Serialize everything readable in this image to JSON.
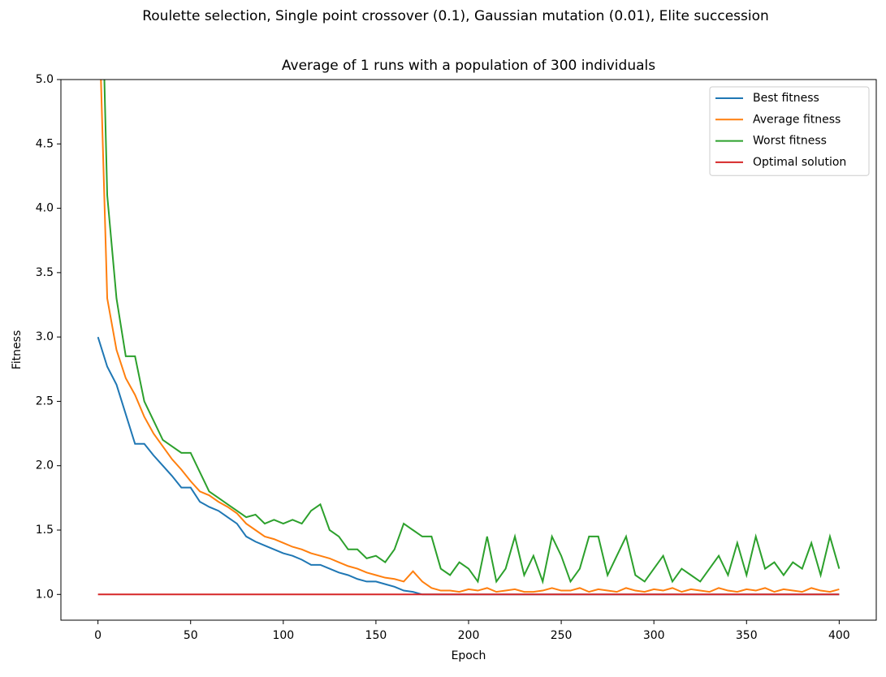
{
  "chart_data": {
    "type": "line",
    "suptitle": "Roulette selection, Single point crossover (0.1), Gaussian mutation (0.01), Elite succession",
    "title": "Average of 1 runs with a population of 300 individuals",
    "x_label": "Epoch",
    "y_label": "Fitness",
    "x": [
      0,
      5,
      10,
      15,
      20,
      25,
      30,
      35,
      40,
      45,
      50,
      55,
      60,
      65,
      70,
      75,
      80,
      85,
      90,
      95,
      100,
      105,
      110,
      115,
      120,
      125,
      130,
      135,
      140,
      145,
      150,
      155,
      160,
      165,
      170,
      175,
      180,
      185,
      190,
      195,
      200,
      205,
      210,
      215,
      220,
      225,
      230,
      235,
      240,
      245,
      250,
      255,
      260,
      265,
      270,
      275,
      280,
      285,
      290,
      295,
      300,
      305,
      310,
      315,
      320,
      325,
      330,
      335,
      340,
      345,
      350,
      355,
      360,
      365,
      370,
      375,
      380,
      385,
      390,
      395,
      400
    ],
    "series": [
      {
        "name": "Best fitness",
        "color": "#1f77b4",
        "values": [
          3.0,
          2.77,
          2.63,
          2.4,
          2.17,
          2.17,
          2.08,
          2.0,
          1.92,
          1.83,
          1.83,
          1.72,
          1.68,
          1.65,
          1.6,
          1.55,
          1.45,
          1.41,
          1.38,
          1.35,
          1.32,
          1.3,
          1.27,
          1.23,
          1.23,
          1.2,
          1.17,
          1.15,
          1.12,
          1.1,
          1.1,
          1.08,
          1.06,
          1.03,
          1.02,
          1.0,
          1.0,
          1.0,
          1.0,
          1.0,
          1.0,
          1.0,
          1.0,
          1.0,
          1.0,
          1.0,
          1.0,
          1.0,
          1.0,
          1.0,
          1.0,
          1.0,
          1.0,
          1.0,
          1.0,
          1.0,
          1.0,
          1.0,
          1.0,
          1.0,
          1.0,
          1.0,
          1.0,
          1.0,
          1.0,
          1.0,
          1.0,
          1.0,
          1.0,
          1.0,
          1.0,
          1.0,
          1.0,
          1.0,
          1.0,
          1.0,
          1.0,
          1.0,
          1.0,
          1.0,
          1.0
        ]
      },
      {
        "name": "Average fitness",
        "color": "#ff7f0e",
        "values": [
          5.8,
          3.3,
          2.9,
          2.68,
          2.55,
          2.38,
          2.25,
          2.15,
          2.05,
          1.97,
          1.88,
          1.8,
          1.77,
          1.72,
          1.68,
          1.63,
          1.55,
          1.5,
          1.45,
          1.43,
          1.4,
          1.37,
          1.35,
          1.32,
          1.3,
          1.28,
          1.25,
          1.22,
          1.2,
          1.17,
          1.15,
          1.13,
          1.12,
          1.1,
          1.18,
          1.1,
          1.05,
          1.03,
          1.03,
          1.02,
          1.04,
          1.03,
          1.05,
          1.02,
          1.03,
          1.04,
          1.02,
          1.02,
          1.03,
          1.05,
          1.03,
          1.03,
          1.05,
          1.02,
          1.04,
          1.03,
          1.02,
          1.05,
          1.03,
          1.02,
          1.04,
          1.03,
          1.05,
          1.02,
          1.04,
          1.03,
          1.02,
          1.05,
          1.03,
          1.02,
          1.04,
          1.03,
          1.05,
          1.02,
          1.04,
          1.03,
          1.02,
          1.05,
          1.03,
          1.02,
          1.04
        ]
      },
      {
        "name": "Worst fitness",
        "color": "#2ca02c",
        "values": [
          7.0,
          4.1,
          3.3,
          2.85,
          2.85,
          2.5,
          2.35,
          2.2,
          2.15,
          2.1,
          2.1,
          1.95,
          1.8,
          1.75,
          1.7,
          1.65,
          1.6,
          1.62,
          1.55,
          1.58,
          1.55,
          1.58,
          1.55,
          1.65,
          1.7,
          1.5,
          1.45,
          1.35,
          1.35,
          1.28,
          1.3,
          1.25,
          1.35,
          1.55,
          1.5,
          1.45,
          1.45,
          1.2,
          1.15,
          1.25,
          1.2,
          1.1,
          1.45,
          1.1,
          1.2,
          1.45,
          1.15,
          1.3,
          1.1,
          1.45,
          1.3,
          1.1,
          1.2,
          1.45,
          1.45,
          1.15,
          1.3,
          1.45,
          1.15,
          1.1,
          1.2,
          1.3,
          1.1,
          1.2,
          1.15,
          1.1,
          1.2,
          1.3,
          1.15,
          1.4,
          1.15,
          1.45,
          1.2,
          1.25,
          1.15,
          1.25,
          1.2,
          1.4,
          1.15,
          1.45,
          1.2
        ]
      },
      {
        "name": "Optimal solution",
        "color": "#d62728",
        "values": [
          1,
          1,
          1,
          1,
          1,
          1,
          1,
          1,
          1,
          1,
          1,
          1,
          1,
          1,
          1,
          1,
          1,
          1,
          1,
          1,
          1,
          1,
          1,
          1,
          1,
          1,
          1,
          1,
          1,
          1,
          1,
          1,
          1,
          1,
          1,
          1,
          1,
          1,
          1,
          1,
          1,
          1,
          1,
          1,
          1,
          1,
          1,
          1,
          1,
          1,
          1,
          1,
          1,
          1,
          1,
          1,
          1,
          1,
          1,
          1,
          1,
          1,
          1,
          1,
          1,
          1,
          1,
          1,
          1,
          1,
          1,
          1,
          1,
          1,
          1,
          1,
          1,
          1,
          1,
          1,
          1
        ]
      }
    ],
    "xlim": [
      -20,
      420
    ],
    "ylim": [
      0.8,
      5.0
    ],
    "xticks": [
      0,
      50,
      100,
      150,
      200,
      250,
      300,
      350,
      400
    ],
    "yticks": [
      {
        "value": 1,
        "label": "1.0"
      },
      {
        "value": 1.5,
        "label": "1.5"
      },
      {
        "value": 2,
        "label": "2.0"
      },
      {
        "value": 2.5,
        "label": "2.5"
      },
      {
        "value": 3,
        "label": "3.0"
      },
      {
        "value": 3.5,
        "label": "3.5"
      },
      {
        "value": 4,
        "label": "4.0"
      },
      {
        "value": 4.5,
        "label": "4.5"
      },
      {
        "value": 5,
        "label": "5.0"
      }
    ],
    "legend": "upper right"
  }
}
